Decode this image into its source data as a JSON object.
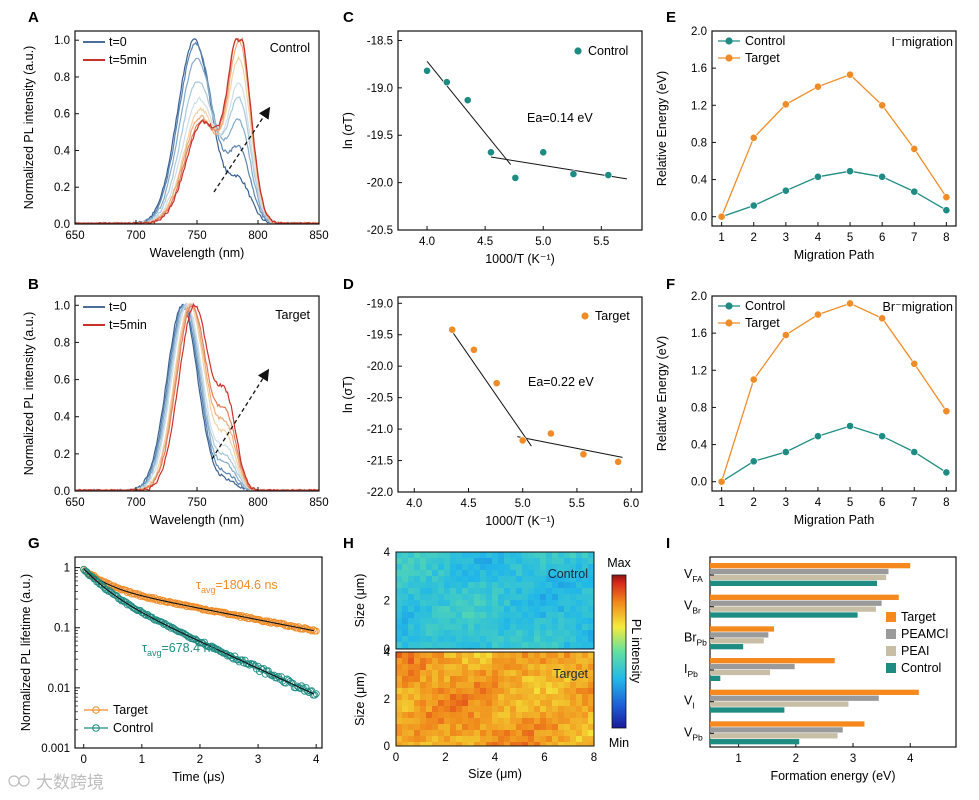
{
  "panels": [
    {
      "id": "A",
      "type": "line",
      "xlabel": "Wavelength (nm)",
      "ylabel": "Normalized PL intensity (a.u.)",
      "xlim": [
        650,
        850
      ],
      "ylim": [
        0,
        1.05
      ],
      "xticks": [
        650,
        700,
        750,
        800,
        850
      ],
      "yticks": [
        0.0,
        0.2,
        0.4,
        0.6,
        0.8,
        1.0
      ],
      "annotation": "Control",
      "legend": [
        {
          "name": "t=0",
          "color": "#4a6e9a"
        },
        {
          "name": "t=5min",
          "color": "#c8302a"
        }
      ],
      "spectra": {
        "n": 9,
        "colors": [
          "#3a5f91",
          "#5a84b0",
          "#84aac8",
          "#a9c8db",
          "#cfe0e8",
          "#f3d2a4",
          "#ecac7a",
          "#e07d5a",
          "#c8302a"
        ],
        "main_center": [
          748,
          749,
          750,
          751,
          752,
          753,
          753,
          754,
          755
        ],
        "main_amp": [
          1.0,
          0.98,
          0.9,
          0.78,
          0.68,
          0.62,
          0.58,
          0.56,
          0.55
        ],
        "main_width": 20,
        "second_center": 785,
        "second_width": 13,
        "second_amp": [
          0.22,
          0.38,
          0.52,
          0.64,
          0.72,
          0.85,
          0.95,
          1.0,
          1.0
        ]
      }
    },
    {
      "id": "B",
      "type": "line",
      "xlabel": "Wavelength (nm)",
      "ylabel": "Normalized PL intensity (a.u.)",
      "xlim": [
        650,
        850
      ],
      "ylim": [
        0,
        1.05
      ],
      "xticks": [
        650,
        700,
        750,
        800,
        850
      ],
      "yticks": [
        0.0,
        0.2,
        0.4,
        0.6,
        0.8,
        1.0
      ],
      "annotation": "Target",
      "legend": [
        {
          "name": "t=0",
          "color": "#4a6e9a"
        },
        {
          "name": "t=5min",
          "color": "#c8302a"
        }
      ],
      "spectra": {
        "n": 9,
        "colors": [
          "#3a5f91",
          "#5a84b0",
          "#84aac8",
          "#a9c8db",
          "#cfe0e8",
          "#f3d2a4",
          "#ecac7a",
          "#e07d5a",
          "#c8302a"
        ],
        "main_center": [
          738,
          739,
          740,
          741,
          742,
          744,
          745,
          746,
          748
        ],
        "main_amp": [
          1.0,
          1.0,
          1.0,
          1.0,
          1.0,
          1.0,
          1.0,
          1.0,
          1.0
        ],
        "main_width": 18,
        "second_center": 775,
        "second_width": 11,
        "second_amp": [
          0.05,
          0.08,
          0.12,
          0.16,
          0.2,
          0.25,
          0.3,
          0.35,
          0.42
        ]
      }
    },
    {
      "id": "C",
      "type": "scatter",
      "xlabel": "1000/T (K⁻¹)",
      "ylabel": "ln (σT)",
      "xlim": [
        3.75,
        5.85
      ],
      "ylim": [
        -20.5,
        -18.4
      ],
      "xticks": [
        4.0,
        4.5,
        5.0,
        5.5
      ],
      "yticks": [
        -18.5,
        -19.0,
        -19.5,
        -20.0,
        -20.5
      ],
      "legend": "Control",
      "color": "#1e8c82",
      "x": [
        4.0,
        4.17,
        4.35,
        4.55,
        4.76,
        5.0,
        5.26,
        5.56
      ],
      "y": [
        -18.82,
        -18.94,
        -19.13,
        -19.68,
        -19.95,
        -19.68,
        -19.91,
        -19.92
      ],
      "fit_lines": [
        [
          [
            4.0,
            -18.72
          ],
          [
            4.72,
            -19.81
          ]
        ],
        [
          [
            4.55,
            -19.73
          ],
          [
            5.72,
            -19.96
          ]
        ]
      ],
      "annotation": "Ea=0.14 eV"
    },
    {
      "id": "D",
      "type": "scatter",
      "xlabel": "1000/T (K⁻¹)",
      "ylabel": "ln (σT)",
      "xlim": [
        3.85,
        6.1
      ],
      "ylim": [
        -22.0,
        -18.9
      ],
      "xticks": [
        4.0,
        4.5,
        5.0,
        5.5,
        6.0
      ],
      "yticks": [
        -19.0,
        -19.5,
        -20.0,
        -20.5,
        -21.0,
        -21.5,
        -22.0
      ],
      "legend": "Target",
      "color": "#f08c28",
      "x": [
        4.35,
        4.55,
        4.76,
        5.0,
        5.26,
        5.56,
        5.88
      ],
      "y": [
        -19.42,
        -19.74,
        -20.27,
        -21.18,
        -21.07,
        -21.4,
        -21.52
      ],
      "fit_lines": [
        [
          [
            4.35,
            -19.45
          ],
          [
            5.08,
            -21.27
          ]
        ],
        [
          [
            4.95,
            -21.12
          ],
          [
            5.92,
            -21.45
          ]
        ]
      ],
      "annotation": "Ea=0.22 eV"
    },
    {
      "id": "E",
      "type": "line",
      "xlabel": "Migration Path",
      "ylabel": "Relative Energy (eV)",
      "xlim": [
        0.7,
        8.3
      ],
      "ylim": [
        -0.1,
        2.0
      ],
      "xticks": [
        1,
        2,
        3,
        4,
        5,
        6,
        7,
        8
      ],
      "yticks": [
        0.0,
        0.4,
        0.8,
        1.2,
        1.6,
        2.0
      ],
      "annotation": "I⁻migration",
      "x": [
        1,
        2,
        3,
        4,
        5,
        6,
        7,
        8
      ],
      "series": [
        {
          "name": "Control",
          "color": "#1e8c82",
          "values": [
            0.0,
            0.12,
            0.28,
            0.43,
            0.49,
            0.43,
            0.27,
            0.07
          ]
        },
        {
          "name": "Target",
          "color": "#f08c28",
          "values": [
            0.0,
            0.85,
            1.21,
            1.4,
            1.53,
            1.2,
            0.73,
            0.21
          ]
        }
      ]
    },
    {
      "id": "F",
      "type": "line",
      "xlabel": "Migration Path",
      "ylabel": "Relative Energy (eV)",
      "xlim": [
        0.7,
        8.3
      ],
      "ylim": [
        -0.1,
        2.0
      ],
      "xticks": [
        1,
        2,
        3,
        4,
        5,
        6,
        7,
        8
      ],
      "yticks": [
        0.0,
        0.4,
        0.8,
        1.2,
        1.6,
        2.0
      ],
      "annotation": "Br⁻migration",
      "x": [
        1,
        2,
        3,
        4,
        5,
        6,
        7,
        8
      ],
      "series": [
        {
          "name": "Control",
          "color": "#1e8c82",
          "values": [
            0.0,
            0.22,
            0.32,
            0.49,
            0.6,
            0.49,
            0.32,
            0.1
          ]
        },
        {
          "name": "Target",
          "color": "#f08c28",
          "values": [
            0.0,
            1.1,
            1.58,
            1.8,
            1.92,
            1.76,
            1.27,
            0.76
          ]
        }
      ]
    },
    {
      "id": "G",
      "type": "scatter",
      "xlabel": "Time (μs)",
      "ylabel": "Normalized PL lifetime",
      "ylabel_unit": "(a.u.)",
      "log_y": true,
      "xlim": [
        -0.15,
        4.1
      ],
      "ylim": [
        0.001,
        1.5
      ],
      "xticks": [
        0.0,
        1.0,
        2.0,
        3.0,
        4.0
      ],
      "yticks": [
        1,
        0.1,
        0.01,
        0.001
      ],
      "ytick_labels": [
        "1",
        "0.1",
        "0.01",
        "0.001"
      ],
      "series": [
        {
          "name": "Target",
          "color": "#f08c28",
          "tau_label": "τ",
          "tau_sub": "avg",
          "tau_value": "=1804.6 ns",
          "fit": {
            "a1": 0.45,
            "t1": 0.3,
            "a2": 0.5,
            "t2": 2.3
          }
        },
        {
          "name": "Control",
          "color": "#1e8c82",
          "tau_label": "τ",
          "tau_sub": "avg",
          "tau_value": "=678.4 ns",
          "fit": {
            "a1": 0.5,
            "t1": 0.3,
            "a2": 0.45,
            "t2": 0.98
          }
        }
      ]
    },
    {
      "id": "H",
      "type": "heatmap",
      "xlabel": "Size (μm)",
      "ylabel": "Size (μm)",
      "xlim": [
        0,
        8
      ],
      "ylim": [
        0,
        4
      ],
      "xticks": [
        0,
        2,
        4,
        6,
        8
      ],
      "yticks": [
        0,
        2,
        4
      ],
      "maps": [
        {
          "name": "Control",
          "level": 0.36,
          "spread": 0.05
        },
        {
          "name": "Target",
          "level": 0.78,
          "spread": 0.06
        }
      ],
      "colorbar": {
        "max_label": "Max",
        "min_label": "Min",
        "label": "PL intensity"
      }
    },
    {
      "id": "I",
      "type": "bar",
      "xlabel": "Formation energy (eV)",
      "xlim": [
        0.5,
        4.8
      ],
      "xticks": [
        1,
        2,
        3,
        4
      ],
      "categories": [
        {
          "main": "V",
          "sub": "FA"
        },
        {
          "main": "V",
          "sub": "Br"
        },
        {
          "main": "Br",
          "sub": "Pb"
        },
        {
          "main": "I",
          "sub": "Pb"
        },
        {
          "main": "V",
          "sub": "I"
        },
        {
          "main": "V",
          "sub": "Pb"
        }
      ],
      "series": [
        {
          "name": "Target",
          "color": "#f5891e",
          "values": [
            4.0,
            3.8,
            1.62,
            2.68,
            4.15,
            3.2
          ]
        },
        {
          "name": "PEAMCl",
          "color": "#9a9a9a",
          "values": [
            3.62,
            3.5,
            1.52,
            1.98,
            3.45,
            2.82
          ]
        },
        {
          "name": "PEAI",
          "color": "#c8bea6",
          "values": [
            3.58,
            3.4,
            1.44,
            1.55,
            2.92,
            2.73
          ]
        },
        {
          "name": "Control",
          "color": "#1e8c82",
          "values": [
            3.42,
            3.08,
            1.08,
            0.68,
            1.8,
            2.06
          ]
        }
      ]
    }
  ],
  "watermark": "大数跨境",
  "chart_data": [
    {
      "type": "line",
      "title": "",
      "xlabel": "Wavelength (nm)",
      "ylabel": "Normalized PL intensity (a.u.)",
      "xlim": [
        650,
        850
      ],
      "ylim": [
        0,
        1.05
      ],
      "legend": [
        "t=0",
        "t=5min"
      ]
    },
    {
      "type": "line",
      "title": "",
      "xlabel": "Wavelength (nm)",
      "ylabel": "Normalized PL intensity (a.u.)",
      "xlim": [
        650,
        850
      ],
      "ylim": [
        0,
        1.05
      ],
      "legend": [
        "t=0",
        "t=5min"
      ]
    },
    {
      "type": "scatter",
      "xlabel": "1000/T (K⁻¹)",
      "ylabel": "ln (σT)",
      "x": [
        4.0,
        4.17,
        4.35,
        4.55,
        4.76,
        5.0,
        5.26,
        5.56
      ],
      "y": [
        -18.82,
        -18.94,
        -19.13,
        -19.68,
        -19.95,
        -19.68,
        -19.91,
        -19.92
      ]
    },
    {
      "type": "scatter",
      "xlabel": "1000/T (K⁻¹)",
      "ylabel": "ln (σT)",
      "x": [
        4.35,
        4.55,
        4.76,
        5.0,
        5.26,
        5.56,
        5.88
      ],
      "y": [
        -19.42,
        -19.74,
        -20.27,
        -21.18,
        -21.07,
        -21.4,
        -21.52
      ]
    },
    {
      "type": "line",
      "xlabel": "Migration Path",
      "ylabel": "Relative Energy (eV)",
      "categories": [
        1,
        2,
        3,
        4,
        5,
        6,
        7,
        8
      ],
      "series": [
        {
          "name": "Control",
          "values": [
            0.0,
            0.12,
            0.28,
            0.43,
            0.49,
            0.43,
            0.27,
            0.07
          ]
        },
        {
          "name": "Target",
          "values": [
            0.0,
            0.85,
            1.21,
            1.4,
            1.53,
            1.2,
            0.73,
            0.21
          ]
        }
      ]
    },
    {
      "type": "line",
      "xlabel": "Migration Path",
      "ylabel": "Relative Energy (eV)",
      "categories": [
        1,
        2,
        3,
        4,
        5,
        6,
        7,
        8
      ],
      "series": [
        {
          "name": "Control",
          "values": [
            0.0,
            0.22,
            0.32,
            0.49,
            0.6,
            0.49,
            0.32,
            0.1
          ]
        },
        {
          "name": "Target",
          "values": [
            0.0,
            1.1,
            1.58,
            1.8,
            1.92,
            1.76,
            1.27,
            0.76
          ]
        }
      ]
    },
    {
      "type": "scatter",
      "xlabel": "Time (μs)",
      "ylabel": "Normalized PL lifetime (a.u.)",
      "log_y": true,
      "xlim": [
        0,
        4
      ],
      "ylim": [
        0.001,
        1
      ]
    },
    {
      "type": "heatmap",
      "xlabel": "Size (μm)",
      "ylabel": "Size (μm)",
      "xlim": [
        0,
        8
      ],
      "ylim": [
        0,
        4
      ]
    },
    {
      "type": "bar",
      "xlabel": "Formation energy (eV)",
      "categories": [
        "VFA",
        "VBr",
        "BrPb",
        "IPb",
        "VI",
        "VPb"
      ],
      "series": [
        {
          "name": "Target",
          "values": [
            4.0,
            3.8,
            1.62,
            2.68,
            4.15,
            3.2
          ]
        },
        {
          "name": "PEAMCl",
          "values": [
            3.62,
            3.5,
            1.52,
            1.98,
            3.45,
            2.82
          ]
        },
        {
          "name": "PEAI",
          "values": [
            3.58,
            3.4,
            1.44,
            1.55,
            2.92,
            2.73
          ]
        },
        {
          "name": "Control",
          "values": [
            3.42,
            3.08,
            1.08,
            0.68,
            1.8,
            2.06
          ]
        }
      ]
    }
  ]
}
